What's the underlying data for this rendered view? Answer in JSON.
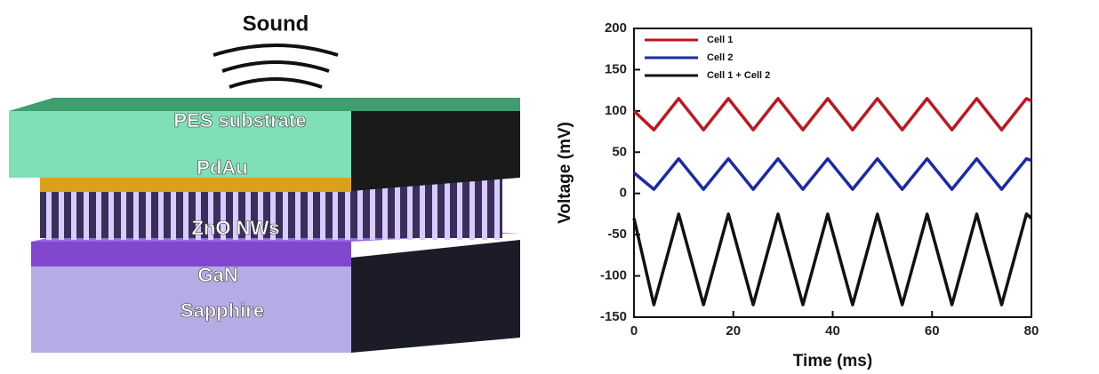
{
  "diagram": {
    "labels": {
      "sound": "Sound",
      "substrate": "PES substrate",
      "electrode": "PdAu",
      "nanowires": "ZnO NWs",
      "base": "GaN",
      "wafer": "Sapphire"
    }
  },
  "chart_data": {
    "type": "line",
    "x_label": "Time (ms)",
    "y_label": "Voltage (mV)",
    "x": [
      0,
      4,
      9,
      14,
      19,
      24,
      29,
      34,
      39,
      44,
      49,
      54,
      59,
      64,
      69,
      74,
      79,
      80
    ],
    "series": [
      {
        "name": "Cell 1",
        "color": "#c0161c",
        "values": [
          100,
          77,
          115,
          77,
          115,
          77,
          115,
          77,
          115,
          77,
          115,
          77,
          115,
          77,
          115,
          77,
          115,
          112
        ]
      },
      {
        "name": "Cell 2",
        "color": "#1a2aa8",
        "values": [
          25,
          5,
          42,
          5,
          42,
          5,
          42,
          5,
          42,
          5,
          42,
          5,
          42,
          5,
          42,
          5,
          42,
          40
        ]
      },
      {
        "name": "Cell 1 + Cell 2",
        "color": "#111111",
        "values": [
          -30,
          -135,
          -25,
          -135,
          -25,
          -135,
          -25,
          -135,
          -25,
          -135,
          -25,
          -135,
          -25,
          -135,
          -25,
          -135,
          -25,
          -30
        ]
      }
    ],
    "xlim": [
      0,
      80
    ],
    "xticks": [
      0,
      20,
      40,
      60,
      80
    ],
    "ylim": [
      -150,
      200
    ],
    "yticks": [
      -150,
      -100,
      -50,
      0,
      50,
      100,
      150,
      200
    ]
  }
}
